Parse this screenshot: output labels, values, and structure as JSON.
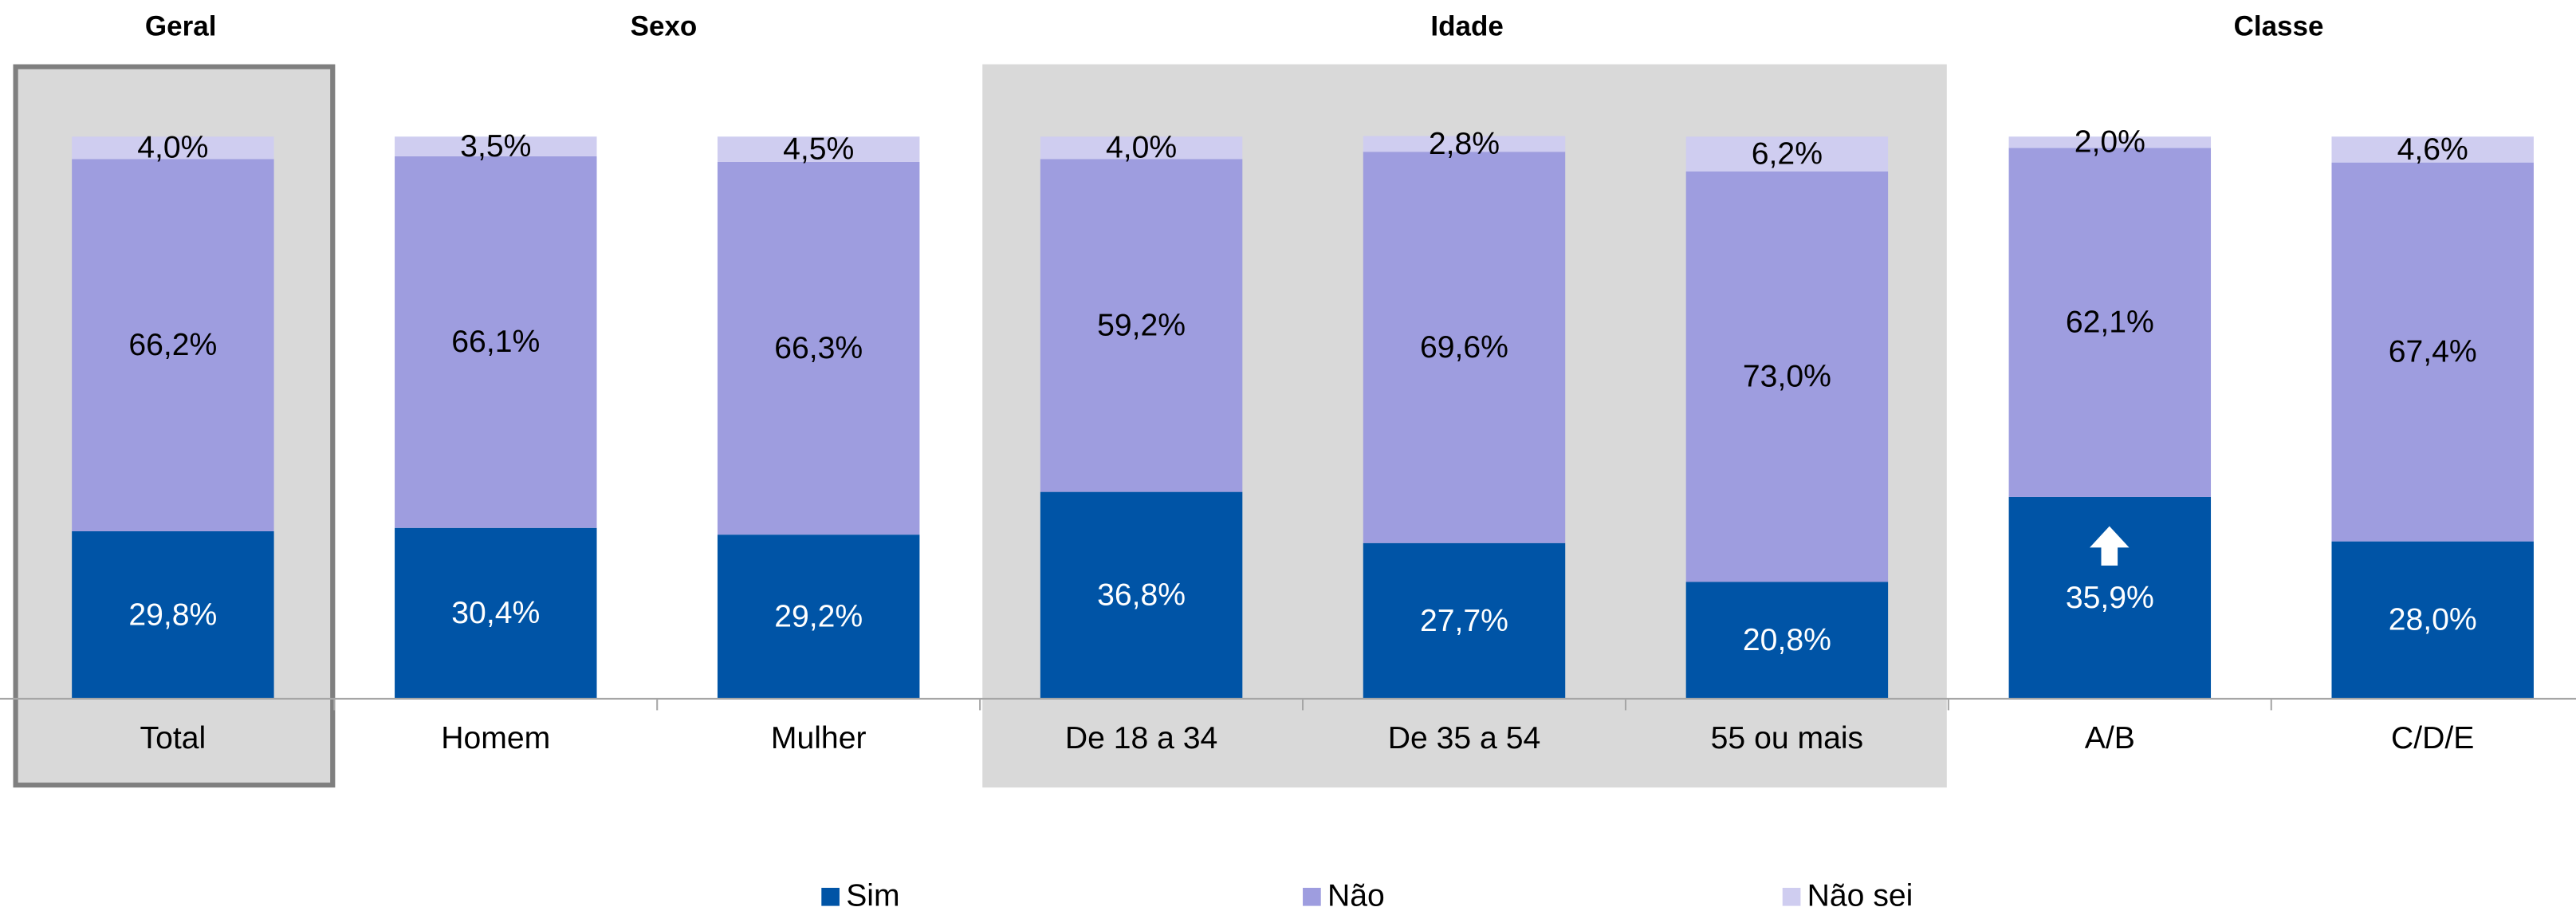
{
  "chart_data": {
    "type": "stacked_bar",
    "groups": [
      "Geral",
      "Sexo",
      "Idade",
      "Classe"
    ],
    "categories": [
      "Total",
      "Homem",
      "Mulher",
      "De 18 a 34",
      "De 35 a 54",
      "55 ou mais",
      "A/B",
      "C/D/E"
    ],
    "ylim": [
      0,
      100
    ],
    "legend": "bottom",
    "series": [
      {
        "name": "Sim",
        "color": "#0054a6",
        "label_color": "#ffffff",
        "values": [
          29.8,
          30.4,
          29.2,
          36.8,
          27.7,
          20.8,
          35.9,
          28.0
        ],
        "value_labels": [
          "29,8%",
          "30,4%",
          "29,2%",
          "36,8%",
          "27,7%",
          "20,8%",
          "35,9%",
          "28,0%"
        ]
      },
      {
        "name": "Não",
        "color": "#9e9ddf",
        "label_color": "#000000",
        "values": [
          66.2,
          66.1,
          66.3,
          59.2,
          69.6,
          73.0,
          62.1,
          67.4
        ],
        "value_labels": [
          "66,2%",
          "66,1%",
          "66,3%",
          "59,2%",
          "69,6%",
          "73,0%",
          "62,1%",
          "67,4%"
        ]
      },
      {
        "name": "Não sei",
        "color": "#cfcdf0",
        "label_color": "#000000",
        "values": [
          4.0,
          3.5,
          4.5,
          4.0,
          2.8,
          6.2,
          2.0,
          4.6
        ],
        "value_labels": [
          "4,0%",
          "3,5%",
          "4,5%",
          "4,0%",
          "2,8%",
          "6,2%",
          "2,0%",
          "4,6%"
        ]
      }
    ]
  }
}
